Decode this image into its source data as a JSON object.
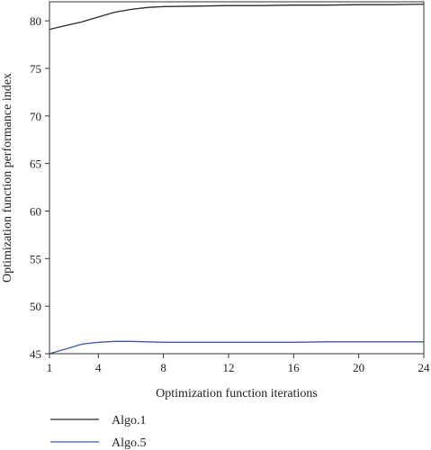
{
  "chart_data": {
    "type": "line",
    "title": "",
    "xlabel": "Optimization function iterations",
    "ylabel": "Optimization function performance index",
    "xlim": [
      1,
      24
    ],
    "ylim": [
      45,
      82
    ],
    "xticks": [
      1,
      4,
      8,
      12,
      16,
      20,
      24
    ],
    "yticks": [
      45,
      50,
      55,
      60,
      65,
      70,
      75,
      80
    ],
    "grid": false,
    "legend_position": "bottom-left",
    "series": [
      {
        "name": "Algo.1",
        "color": "#2b2b2b",
        "x": [
          1,
          2,
          3,
          4,
          5,
          6,
          7,
          8,
          10,
          12,
          14,
          16,
          18,
          20,
          22,
          24
        ],
        "y": [
          79.1,
          79.5,
          79.9,
          80.4,
          80.9,
          81.2,
          81.4,
          81.5,
          81.55,
          81.6,
          81.6,
          81.65,
          81.65,
          81.7,
          81.7,
          81.75
        ]
      },
      {
        "name": "Algo.5",
        "color": "#3c5aa6",
        "x": [
          1,
          2,
          3,
          4,
          5,
          6,
          7,
          8,
          10,
          12,
          14,
          16,
          18,
          20,
          22,
          24
        ],
        "y": [
          45.0,
          45.5,
          46.0,
          46.2,
          46.3,
          46.3,
          46.25,
          46.2,
          46.2,
          46.2,
          46.2,
          46.2,
          46.25,
          46.25,
          46.25,
          46.25
        ]
      }
    ]
  }
}
